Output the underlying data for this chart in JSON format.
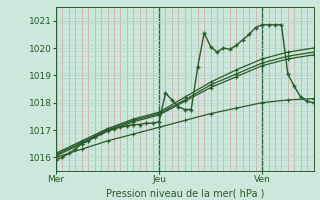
{
  "xlabel": "Pression niveau de la mer( hPa )",
  "bg_color": "#cce8dc",
  "plot_bg": "#cce8dc",
  "grid_v_minor": "#d4a0a0",
  "grid_h_minor": "#b8d8cc",
  "grid_major_x": "#3a6040",
  "grid_major_y": "#b8d8cc",
  "line_color": "#2a5a2a",
  "ylim": [
    1015.5,
    1021.5
  ],
  "xlim": [
    0,
    120
  ],
  "yticks": [
    1016,
    1017,
    1018,
    1019,
    1020,
    1021
  ],
  "day_labels": [
    "Mer",
    "Jeu",
    "Ven"
  ],
  "day_positions": [
    0,
    48,
    96
  ],
  "series_main": [
    [
      0,
      1015.9
    ],
    [
      3,
      1016.0
    ],
    [
      6,
      1016.15
    ],
    [
      9,
      1016.3
    ],
    [
      12,
      1016.5
    ],
    [
      15,
      1016.6
    ],
    [
      18,
      1016.75
    ],
    [
      21,
      1016.9
    ],
    [
      24,
      1017.0
    ],
    [
      27,
      1017.05
    ],
    [
      30,
      1017.1
    ],
    [
      33,
      1017.15
    ],
    [
      36,
      1017.2
    ],
    [
      39,
      1017.2
    ],
    [
      42,
      1017.25
    ],
    [
      45,
      1017.25
    ],
    [
      48,
      1017.3
    ],
    [
      51,
      1018.35
    ],
    [
      54,
      1018.1
    ],
    [
      57,
      1017.85
    ],
    [
      60,
      1017.75
    ],
    [
      63,
      1017.75
    ],
    [
      66,
      1019.3
    ],
    [
      69,
      1020.55
    ],
    [
      72,
      1020.05
    ],
    [
      75,
      1019.85
    ],
    [
      78,
      1020.0
    ],
    [
      81,
      1019.95
    ],
    [
      84,
      1020.1
    ],
    [
      87,
      1020.3
    ],
    [
      90,
      1020.5
    ],
    [
      93,
      1020.75
    ],
    [
      96,
      1020.85
    ],
    [
      99,
      1020.85
    ],
    [
      102,
      1020.85
    ],
    [
      105,
      1020.85
    ],
    [
      108,
      1019.05
    ],
    [
      111,
      1018.6
    ],
    [
      114,
      1018.2
    ],
    [
      117,
      1018.05
    ],
    [
      120,
      1018.0
    ]
  ],
  "series_flat": [
    [
      0,
      1016.0
    ],
    [
      12,
      1016.3
    ],
    [
      24,
      1016.6
    ],
    [
      36,
      1016.85
    ],
    [
      48,
      1017.1
    ],
    [
      60,
      1017.35
    ],
    [
      72,
      1017.6
    ],
    [
      84,
      1017.8
    ],
    [
      96,
      1018.0
    ],
    [
      108,
      1018.1
    ],
    [
      120,
      1018.15
    ]
  ],
  "series_upper1": [
    [
      0,
      1016.05
    ],
    [
      12,
      1016.5
    ],
    [
      24,
      1016.95
    ],
    [
      36,
      1017.3
    ],
    [
      48,
      1017.55
    ],
    [
      60,
      1018.05
    ],
    [
      72,
      1018.55
    ],
    [
      84,
      1018.95
    ],
    [
      96,
      1019.35
    ],
    [
      108,
      1019.6
    ],
    [
      120,
      1019.75
    ]
  ],
  "series_upper2": [
    [
      0,
      1016.1
    ],
    [
      12,
      1016.55
    ],
    [
      24,
      1017.0
    ],
    [
      36,
      1017.35
    ],
    [
      48,
      1017.6
    ],
    [
      60,
      1018.1
    ],
    [
      72,
      1018.65
    ],
    [
      84,
      1019.05
    ],
    [
      96,
      1019.45
    ],
    [
      108,
      1019.7
    ],
    [
      120,
      1019.85
    ]
  ],
  "series_upper3": [
    [
      0,
      1016.15
    ],
    [
      12,
      1016.6
    ],
    [
      24,
      1017.05
    ],
    [
      36,
      1017.4
    ],
    [
      48,
      1017.65
    ],
    [
      60,
      1018.2
    ],
    [
      72,
      1018.75
    ],
    [
      84,
      1019.2
    ],
    [
      96,
      1019.6
    ],
    [
      108,
      1019.85
    ],
    [
      120,
      1020.0
    ]
  ]
}
